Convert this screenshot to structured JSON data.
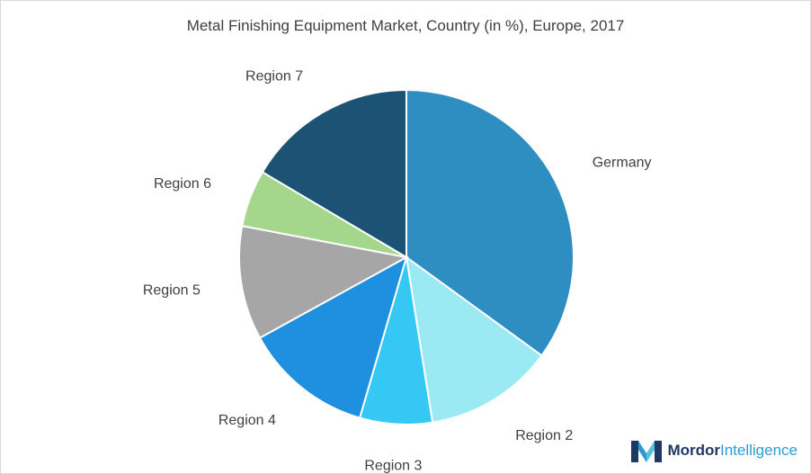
{
  "chart_data": {
    "type": "pie",
    "title": "Metal Finishing Equipment Market, Country (in %), Europe, 2017",
    "slices": [
      {
        "label": "Germany",
        "value": 35,
        "color": "#2e8ec2"
      },
      {
        "label": "Region 2",
        "value": 12.5,
        "color": "#9be9f2"
      },
      {
        "label": "Region 3",
        "value": 7,
        "color": "#35c8f5"
      },
      {
        "label": "Region 4",
        "value": 12.5,
        "color": "#1f8fdf"
      },
      {
        "label": "Region 5",
        "value": 11,
        "color": "#a6a6a6"
      },
      {
        "label": "Region 6",
        "value": 5.5,
        "color": "#a4d68b"
      },
      {
        "label": "Region 7",
        "value": 16.5,
        "color": "#1c5273"
      }
    ],
    "legend": "none"
  },
  "branding": {
    "name_part1": "Mordor",
    "name_part2": "Intelligence"
  }
}
